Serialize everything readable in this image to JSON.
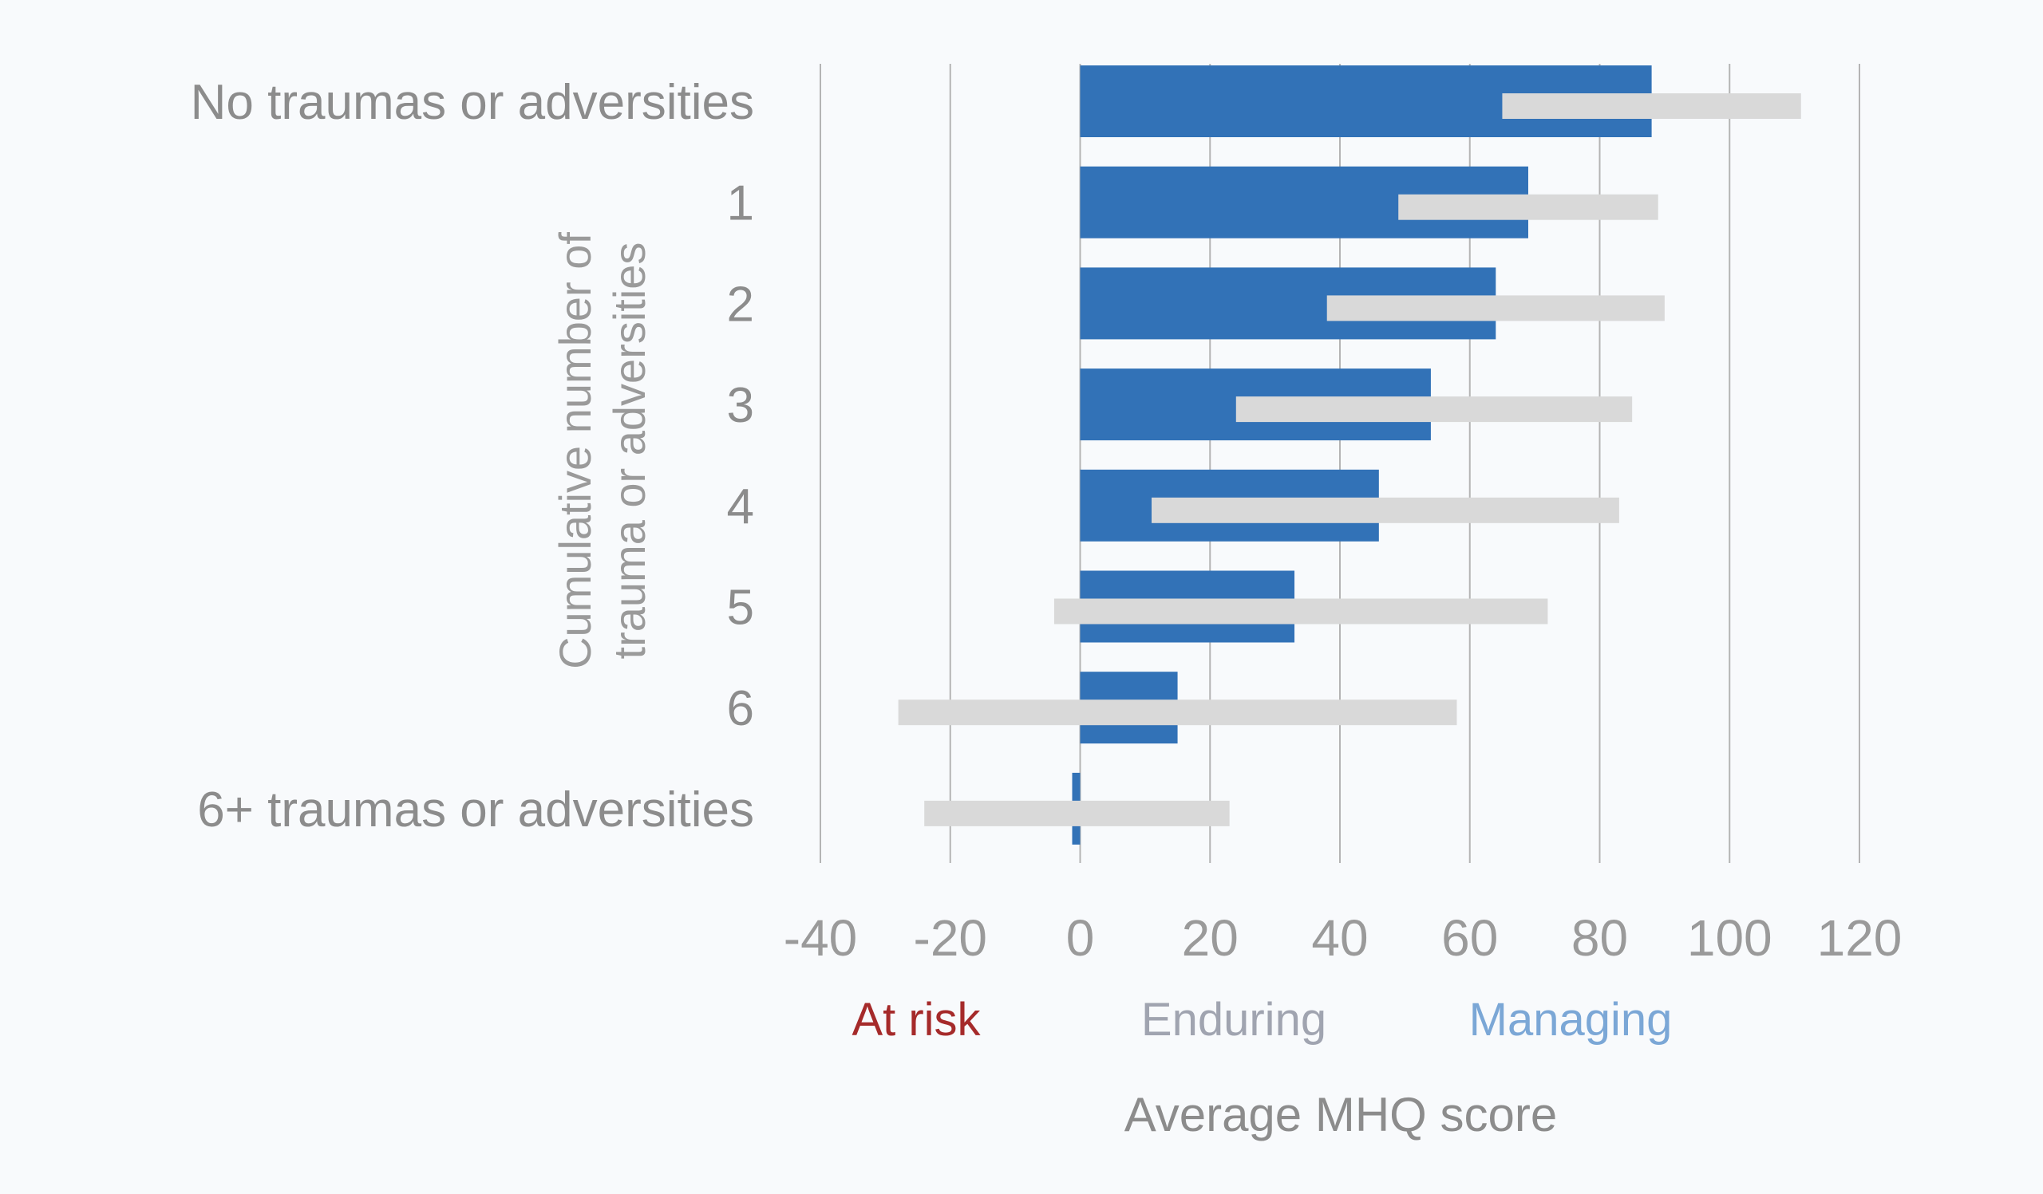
{
  "chart_data": {
    "type": "bar",
    "orientation": "horizontal",
    "categories": [
      "No traumas or adversities",
      "1",
      "2",
      "3",
      "4",
      "5",
      "6",
      "6+ traumas or adversities"
    ],
    "series": [
      {
        "values": [
          88,
          69,
          64,
          54,
          46,
          33,
          15,
          -1
        ],
        "color": "#3272b7"
      }
    ],
    "ranges": [
      {
        "low": 65,
        "high": 111
      },
      {
        "low": 49,
        "high": 89
      },
      {
        "low": 38,
        "high": 90
      },
      {
        "low": 24,
        "high": 85
      },
      {
        "low": 11,
        "high": 83
      },
      {
        "low": -4,
        "high": 72
      },
      {
        "low": -28,
        "high": 58
      },
      {
        "low": -24,
        "high": 23
      }
    ],
    "range_color": "#d9d9d9",
    "xlabel": "Average MHQ score",
    "ylabel": "Cumulative number of trauma or adversities",
    "xlim": [
      -40,
      120
    ],
    "xticks": [
      -40,
      -20,
      0,
      20,
      40,
      60,
      80,
      100,
      120
    ],
    "grid": true,
    "zones": [
      {
        "label": "At risk",
        "color": "#a52a2a"
      },
      {
        "label": "Enduring",
        "color": "#a0a4b0"
      },
      {
        "label": "Managing",
        "color": "#7ba7d6"
      }
    ]
  }
}
